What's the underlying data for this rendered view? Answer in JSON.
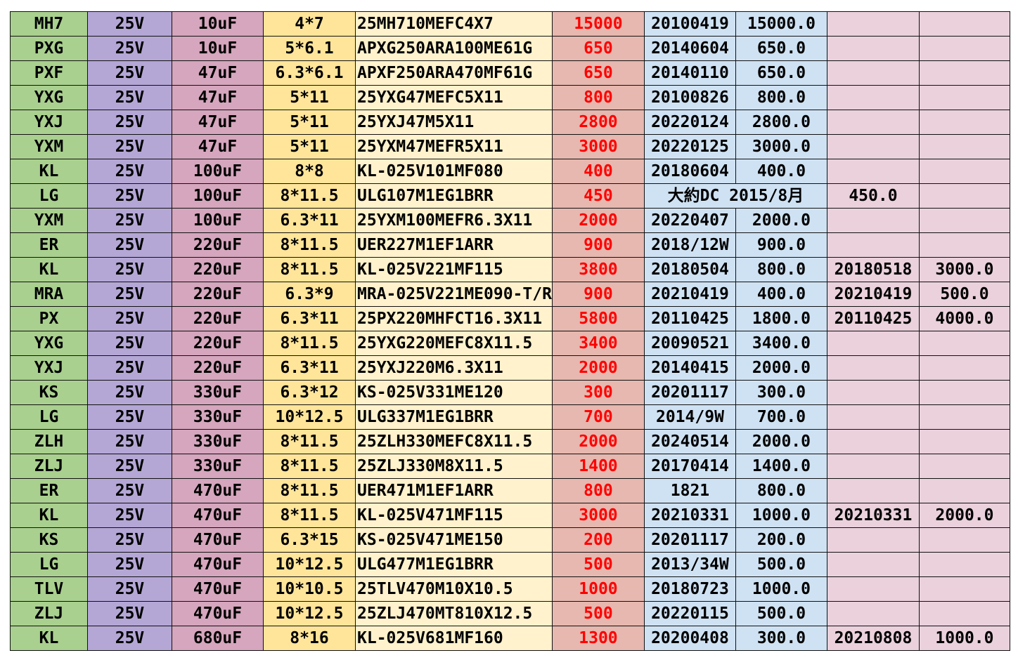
{
  "rows": [
    {
      "series": "MH7",
      "voltage": "25V",
      "capacitance": "10uF",
      "size": "4*7",
      "part_no": "25MH710MEFC4X7",
      "qty": "15000",
      "date1": "20100419",
      "qty1": "15000.0",
      "date2": "",
      "qty2": ""
    },
    {
      "series": "PXG",
      "voltage": "25V",
      "capacitance": "10uF",
      "size": "5*6.1",
      "part_no": "APXG250ARA100ME61G",
      "qty": "650",
      "date1": "20140604",
      "qty1": "650.0",
      "date2": "",
      "qty2": ""
    },
    {
      "series": "PXF",
      "voltage": "25V",
      "capacitance": "47uF",
      "size": "6.3*6.1",
      "part_no": "APXF250ARA470MF61G",
      "qty": "650",
      "date1": "20140110",
      "qty1": "650.0",
      "date2": "",
      "qty2": ""
    },
    {
      "series": "YXG",
      "voltage": "25V",
      "capacitance": "47uF",
      "size": "5*11",
      "part_no": "25YXG47MEFC5X11",
      "qty": "800",
      "date1": "20100826",
      "qty1": "800.0",
      "date2": "",
      "qty2": ""
    },
    {
      "series": "YXJ",
      "voltage": "25V",
      "capacitance": "47uF",
      "size": "5*11",
      "part_no": "25YXJ47M5X11",
      "qty": "2800",
      "date1": "20220124",
      "qty1": "2800.0",
      "date2": "",
      "qty2": ""
    },
    {
      "series": "YXM",
      "voltage": "25V",
      "capacitance": "47uF",
      "size": "5*11",
      "part_no": "25YXM47MEFR5X11",
      "qty": "3000",
      "date1": "20220125",
      "qty1": "3000.0",
      "date2": "",
      "qty2": ""
    },
    {
      "series": "KL",
      "voltage": "25V",
      "capacitance": "100uF",
      "size": "8*8",
      "part_no": "KL-025V101MF080",
      "qty": "400",
      "date1": "20180604",
      "qty1": "400.0",
      "date2": "",
      "qty2": ""
    },
    {
      "series": "LG",
      "voltage": "25V",
      "capacitance": "100uF",
      "size": "8*11.5",
      "part_no": "ULG107M1EG1BRR",
      "qty": "450",
      "merged_date": "大約DC 2015/8月",
      "date2": "450.0",
      "qty2": ""
    },
    {
      "series": "YXM",
      "voltage": "25V",
      "capacitance": "100uF",
      "size": "6.3*11",
      "part_no": "25YXM100MEFR6.3X11",
      "qty": "2000",
      "date1": "20220407",
      "qty1": "2000.0",
      "date2": "",
      "qty2": ""
    },
    {
      "series": "ER",
      "voltage": "25V",
      "capacitance": "220uF",
      "size": "8*11.5",
      "part_no": "UER227M1EF1ARR",
      "qty": "900",
      "date1": "2018/12W",
      "qty1": "900.0",
      "date2": "",
      "qty2": ""
    },
    {
      "series": "KL",
      "voltage": "25V",
      "capacitance": "220uF",
      "size": "8*11.5",
      "part_no": "KL-025V221MF115",
      "qty": "3800",
      "date1": "20180504",
      "qty1": "800.0",
      "date2": "20180518",
      "qty2": "3000.0"
    },
    {
      "series": "MRA",
      "voltage": "25V",
      "capacitance": "220uF",
      "size": "6.3*9",
      "part_no": "MRA-025V221ME090-T/R",
      "qty": "900",
      "date1": "20210419",
      "qty1": "400.0",
      "date2": "20210419",
      "qty2": "500.0"
    },
    {
      "series": "PX",
      "voltage": "25V",
      "capacitance": "220uF",
      "size": "6.3*11",
      "part_no": "25PX220MHFCT16.3X11",
      "qty": "5800",
      "date1": "20110425",
      "qty1": "1800.0",
      "date2": "20110425",
      "qty2": "4000.0"
    },
    {
      "series": "YXG",
      "voltage": "25V",
      "capacitance": "220uF",
      "size": "8*11.5",
      "part_no": "25YXG220MEFC8X11.5",
      "qty": "3400",
      "date1": "20090521",
      "qty1": "3400.0",
      "date2": "",
      "qty2": ""
    },
    {
      "series": "YXJ",
      "voltage": "25V",
      "capacitance": "220uF",
      "size": "6.3*11",
      "part_no": "25YXJ220M6.3X11",
      "qty": "2000",
      "date1": "20140415",
      "qty1": "2000.0",
      "date2": "",
      "qty2": ""
    },
    {
      "series": "KS",
      "voltage": "25V",
      "capacitance": "330uF",
      "size": "6.3*12",
      "part_no": "KS-025V331ME120",
      "qty": "300",
      "date1": "20201117",
      "qty1": "300.0",
      "date2": "",
      "qty2": ""
    },
    {
      "series": "LG",
      "voltage": "25V",
      "capacitance": "330uF",
      "size": "10*12.5",
      "part_no": "ULG337M1EG1BRR",
      "qty": "700",
      "date1": "2014/9W",
      "qty1": "700.0",
      "date2": "",
      "qty2": ""
    },
    {
      "series": "ZLH",
      "voltage": "25V",
      "capacitance": "330uF",
      "size": "8*11.5",
      "part_no": "25ZLH330MEFC8X11.5",
      "qty": "2000",
      "date1": "20240514",
      "qty1": "2000.0",
      "date2": "",
      "qty2": ""
    },
    {
      "series": "ZLJ",
      "voltage": "25V",
      "capacitance": "330uF",
      "size": "8*11.5",
      "part_no": "25ZLJ330M8X11.5",
      "qty": "1400",
      "date1": "20170414",
      "qty1": "1400.0",
      "date2": "",
      "qty2": ""
    },
    {
      "series": "ER",
      "voltage": "25V",
      "capacitance": "470uF",
      "size": "8*11.5",
      "part_no": "UER471M1EF1ARR",
      "qty": "800",
      "date1": "1821",
      "qty1": "800.0",
      "date2": "",
      "qty2": ""
    },
    {
      "series": "KL",
      "voltage": "25V",
      "capacitance": "470uF",
      "size": "8*11.5",
      "part_no": "KL-025V471MF115",
      "qty": "3000",
      "date1": "20210331",
      "qty1": "1000.0",
      "date2": "20210331",
      "qty2": "2000.0"
    },
    {
      "series": "KS",
      "voltage": "25V",
      "capacitance": "470uF",
      "size": "6.3*15",
      "part_no": "KS-025V471ME150",
      "qty": "200",
      "date1": "20201117",
      "qty1": "200.0",
      "date2": "",
      "qty2": ""
    },
    {
      "series": "LG",
      "voltage": "25V",
      "capacitance": "470uF",
      "size": "10*12.5",
      "part_no": "ULG477M1EG1BRR",
      "qty": "500",
      "date1": "2013/34W",
      "qty1": "500.0",
      "date2": "",
      "qty2": ""
    },
    {
      "series": "TLV",
      "voltage": "25V",
      "capacitance": "470uF",
      "size": "10*10.5",
      "part_no": "25TLV470M10X10.5",
      "qty": "1000",
      "date1": "20180723",
      "qty1": "1000.0",
      "date2": "",
      "qty2": ""
    },
    {
      "series": "ZLJ",
      "voltage": "25V",
      "capacitance": "470uF",
      "size": "10*12.5",
      "part_no": "25ZLJ470MT810X12.5",
      "qty": "500",
      "date1": "20220115",
      "qty1": "500.0",
      "date2": "",
      "qty2": ""
    },
    {
      "series": "KL",
      "voltage": "25V",
      "capacitance": "680uF",
      "size": "8*16",
      "part_no": "KL-025V681MF160",
      "qty": "1300",
      "date1": "20200408",
      "qty1": "300.0",
      "date2": "20210808",
      "qty2": "1000.0"
    }
  ]
}
